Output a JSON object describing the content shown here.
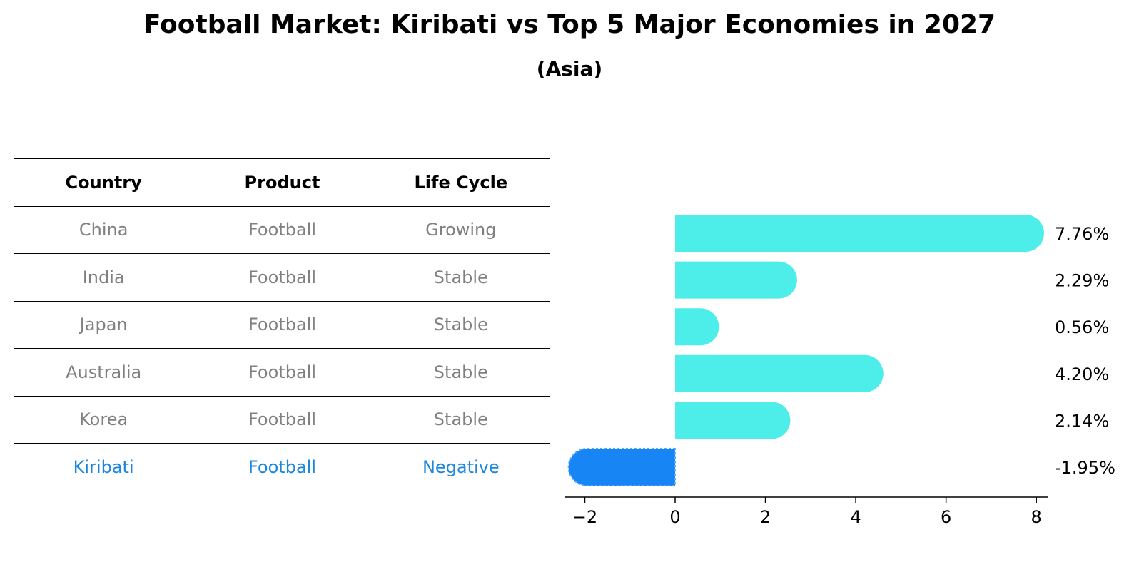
{
  "title": "Football Market: Kiribati vs Top 5 Major Economies in 2027",
  "subtitle": "(Asia)",
  "table": {
    "headers": [
      "Country",
      "Product",
      "Life Cycle"
    ],
    "rows": [
      [
        "China",
        "Football",
        "Growing"
      ],
      [
        "India",
        "Football",
        "Stable"
      ],
      [
        "Japan",
        "Football",
        "Stable"
      ],
      [
        "Australia",
        "Football",
        "Stable"
      ],
      [
        "Korea",
        "Football",
        "Stable"
      ],
      [
        "Kiribati",
        "Football",
        "Negative"
      ]
    ],
    "highlight_row": 5
  },
  "colors": {
    "bar_default": "#4deee9",
    "bar_highlight": "#1885f4",
    "text_muted": "#808080",
    "text_highlight": "#1b86e0"
  },
  "chart_data": {
    "type": "bar",
    "orientation": "horizontal",
    "categories": [
      "China",
      "India",
      "Japan",
      "Australia",
      "Korea",
      "Kiribati"
    ],
    "values": [
      7.76,
      2.29,
      0.56,
      4.2,
      2.14,
      -1.95
    ],
    "value_labels": [
      "7.76%",
      "2.29%",
      "0.56%",
      "4.20%",
      "2.14%",
      "-1.95%"
    ],
    "xlim": [
      -2.45,
      8.25
    ],
    "xticks": [
      -2,
      0,
      2,
      4,
      6,
      8
    ],
    "xtick_labels": [
      "−2",
      "0",
      "2",
      "4",
      "6",
      "8"
    ],
    "grid": false,
    "highlight_index": 5
  }
}
